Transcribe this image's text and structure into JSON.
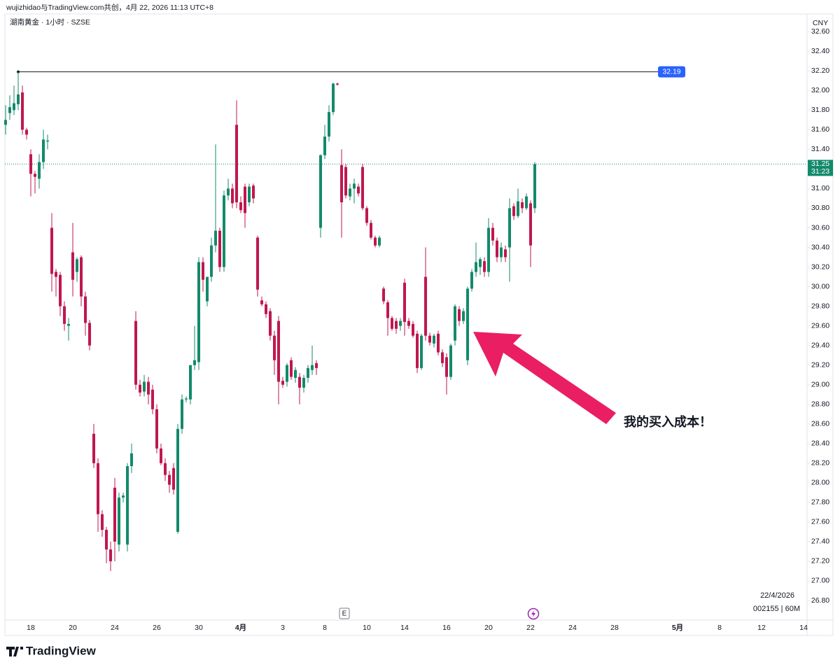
{
  "header": {
    "credit": "wujizhidao与TradingView.com共创，4月 22, 2026 11:13 UTC+8"
  },
  "chart_data": {
    "type": "candlestick",
    "title": "湖南黄金 · 1小时 · SZSE",
    "currency": "CNY",
    "up_color": "#138a6b",
    "down_color": "#c0174e",
    "categories": [
      null,
      null,
      null,
      null,
      null,
      null,
      "18",
      null,
      null,
      null,
      null,
      null,
      null,
      null,
      null,
      null,
      "20",
      null,
      null,
      null,
      null,
      null,
      null,
      null,
      null,
      null,
      "24",
      null,
      null,
      null,
      null,
      null,
      null,
      null,
      null,
      null,
      "26",
      null,
      null,
      null,
      null,
      null,
      null,
      null,
      null,
      null,
      "30",
      null,
      null,
      null,
      null,
      null,
      null,
      null,
      null,
      null,
      "4月",
      null,
      null,
      null,
      null,
      null,
      null,
      null,
      null,
      null,
      "3",
      null,
      null,
      null,
      null,
      null,
      null,
      null,
      null,
      null,
      "8",
      null,
      null,
      null,
      null,
      null,
      null,
      null,
      null,
      null,
      "10",
      null,
      null,
      null,
      null,
      null,
      null,
      null,
      null,
      "14",
      null,
      null,
      null,
      null,
      null,
      null,
      null,
      null,
      null,
      "16",
      null,
      null,
      null,
      null,
      null,
      null,
      null,
      null,
      null,
      "20",
      null,
      null,
      null,
      null,
      null,
      null,
      null,
      null,
      null,
      "22",
      null,
      null,
      null,
      null,
      null,
      null,
      null,
      null,
      null,
      "24",
      null,
      null,
      null,
      null,
      null,
      null,
      null,
      null,
      null,
      "28",
      null,
      null,
      null,
      null,
      null,
      null,
      null,
      null,
      null,
      null,
      null,
      null,
      null,
      null,
      "5月",
      null,
      null,
      null,
      null,
      null,
      null,
      null,
      null,
      null,
      "8",
      null,
      null,
      null,
      null,
      null,
      null,
      null,
      null,
      null,
      "12",
      null,
      null,
      null,
      null,
      null,
      null,
      null,
      null,
      null,
      "14"
    ],
    "open": [
      31.65,
      31.77,
      31.8,
      31.86,
      31.98,
      31.6,
      31.35,
      31.15,
      31.1,
      31.27,
      31.48,
      30.6,
      30.15,
      30.12,
      29.8,
      29.6,
      30.35,
      30.15,
      30.3,
      29.9,
      29.63,
      28.5,
      28.2,
      27.68,
      27.52,
      27.32,
      27.95,
      27.37,
      27.85,
      27.37,
      28.17,
      29.65,
      29.0,
      28.93,
      29.03,
      28.95,
      28.75,
      28.35,
      28.2,
      28.08,
      28.15,
      27.5,
      28.55,
      28.85,
      28.85,
      29.2,
      29.23,
      30.25,
      29.85,
      30.1,
      30.42,
      30.57,
      30.2,
      30.93,
      31.0,
      31.65,
      30.86,
      31.02,
      30.86,
      31.03,
      30.5,
      29.86,
      29.82,
      29.75,
      29.5,
      29.65,
      29.04,
      29.03,
      29.25,
      29.07,
      29.08,
      28.97,
      29.07,
      29.15,
      29.22,
      30.6,
      31.34,
      31.53,
      31.78,
      32.07,
      31.24,
      31.22,
      30.92,
      31.0,
      31.02,
      31.22,
      30.8,
      30.65,
      30.5,
      30.42,
      29.98,
      29.84,
      29.68,
      29.65,
      29.6,
      30.04,
      29.65,
      29.62,
      29.52,
      29.17,
      30.1,
      29.5,
      29.42,
      29.52,
      29.33,
      29.28,
      29.08,
      29.45,
      29.77,
      29.65,
      29.25,
      29.98,
      30.15,
      30.2,
      30.26,
      30.15,
      30.6,
      30.47,
      30.3,
      30.38,
      30.4,
      30.82,
      30.72,
      30.86,
      30.8,
      30.85,
      30.8,
      null,
      null,
      null,
      null,
      null,
      null,
      null,
      null,
      null,
      null,
      null,
      null,
      null,
      null,
      null,
      null,
      null,
      null,
      null,
      null,
      null,
      null,
      null,
      null,
      null,
      null,
      null,
      null,
      null,
      null,
      null,
      null,
      null,
      null,
      null,
      null,
      null,
      null,
      null,
      null,
      null,
      null,
      null,
      null,
      null,
      null,
      null,
      null,
      null,
      null,
      null,
      null,
      null,
      null,
      null,
      null,
      null,
      null,
      null,
      null,
      null,
      null,
      null,
      null
    ],
    "high": [
      31.85,
      31.95,
      32.05,
      32.19,
      32.05,
      31.62,
      31.4,
      31.18,
      31.35,
      31.6,
      31.55,
      30.75,
      30.18,
      30.15,
      29.85,
      29.68,
      30.65,
      30.3,
      30.32,
      29.95,
      29.66,
      28.6,
      28.25,
      27.72,
      27.55,
      27.4,
      28.05,
      27.9,
      27.9,
      28.2,
      28.4,
      29.75,
      29.05,
      29.1,
      29.08,
      29.0,
      28.8,
      28.4,
      28.25,
      28.12,
      28.2,
      28.6,
      28.9,
      28.88,
      29.2,
      29.6,
      30.3,
      30.3,
      30.1,
      30.5,
      31.45,
      30.6,
      30.98,
      31.1,
      31.05,
      31.9,
      30.92,
      31.05,
      31.05,
      31.05,
      30.52,
      29.9,
      29.85,
      29.78,
      29.55,
      29.7,
      29.08,
      29.22,
      29.28,
      29.18,
      29.12,
      29.1,
      29.2,
      29.4,
      29.25,
      31.35,
      31.65,
      31.85,
      32.08,
      32.08,
      31.4,
      31.25,
      31.05,
      31.1,
      31.05,
      31.25,
      30.82,
      30.68,
      30.52,
      30.52,
      30.0,
      29.86,
      29.7,
      29.68,
      29.68,
      30.08,
      29.68,
      29.65,
      29.55,
      29.52,
      30.4,
      29.53,
      29.52,
      29.55,
      29.36,
      29.32,
      29.42,
      29.82,
      29.8,
      29.78,
      30.0,
      30.18,
      30.45,
      30.3,
      30.3,
      30.7,
      30.65,
      30.5,
      30.45,
      30.42,
      30.9,
      30.85,
      31.0,
      30.9,
      30.95,
      30.88,
      31.27,
      null,
      null,
      null,
      null,
      null,
      null,
      null,
      null,
      null,
      null,
      null,
      null,
      null,
      null,
      null,
      null,
      null,
      null,
      null,
      null,
      null,
      null,
      null,
      null,
      null,
      null,
      null,
      null,
      null,
      null,
      null,
      null,
      null,
      null,
      null,
      null,
      null,
      null,
      null,
      null,
      null,
      null,
      null,
      null,
      null,
      null,
      null,
      null,
      null,
      null,
      null,
      null,
      null,
      null,
      null,
      null,
      null,
      null,
      null,
      null,
      null,
      null,
      null,
      null
    ],
    "low": [
      31.55,
      31.7,
      31.75,
      31.8,
      31.55,
      31.5,
      30.92,
      30.95,
      31.0,
      31.2,
      31.4,
      29.95,
      29.9,
      29.7,
      29.55,
      29.45,
      29.9,
      30.05,
      29.8,
      29.5,
      29.35,
      28.15,
      27.5,
      27.45,
      27.18,
      27.1,
      27.2,
      27.3,
      27.8,
      27.3,
      28.1,
      28.95,
      28.88,
      28.88,
      28.8,
      28.7,
      28.3,
      28.18,
      28.02,
      27.9,
      27.88,
      27.48,
      28.5,
      28.82,
      28.8,
      29.15,
      29.15,
      29.95,
      29.8,
      30.05,
      30.35,
      30.15,
      30.15,
      30.88,
      30.8,
      30.8,
      30.75,
      30.6,
      30.82,
      30.85,
      29.9,
      29.8,
      29.68,
      29.45,
      29.1,
      28.8,
      28.97,
      28.98,
      29.05,
      29.02,
      28.8,
      28.92,
      29.02,
      29.1,
      29.1,
      30.5,
      31.3,
      31.48,
      31.75,
      32.05,
      30.5,
      30.9,
      30.88,
      30.85,
      30.92,
      30.78,
      30.62,
      30.48,
      30.4,
      30.4,
      29.82,
      29.5,
      29.55,
      29.52,
      29.55,
      29.5,
      29.57,
      29.48,
      29.12,
      29.15,
      29.45,
      29.4,
      29.38,
      29.3,
      29.18,
      28.9,
      29.05,
      29.4,
      29.6,
      29.62,
      29.2,
      29.95,
      30.1,
      30.12,
      30.1,
      30.1,
      30.42,
      30.25,
      30.25,
      30.25,
      30.05,
      30.68,
      30.7,
      30.75,
      30.78,
      30.2,
      30.75,
      null,
      null,
      null,
      null,
      null,
      null,
      null,
      null,
      null,
      null,
      null,
      null,
      null,
      null,
      null,
      null,
      null,
      null,
      null,
      null,
      null,
      null,
      null,
      null,
      null,
      null,
      null,
      null,
      null,
      null,
      null,
      null,
      null,
      null,
      null,
      null,
      null,
      null,
      null,
      null,
      null,
      null,
      null,
      null,
      null,
      null,
      null,
      null,
      null,
      null,
      null,
      null,
      null,
      null,
      null,
      null,
      null,
      null,
      null,
      null,
      null,
      null,
      null,
      null
    ],
    "close": [
      31.7,
      31.83,
      31.87,
      31.96,
      31.6,
      31.55,
      31.15,
      31.12,
      31.27,
      31.5,
      31.49,
      30.13,
      30.1,
      29.8,
      29.62,
      29.62,
      30.07,
      30.28,
      29.9,
      29.63,
      29.4,
      28.2,
      27.68,
      27.52,
      27.32,
      27.2,
      27.4,
      27.85,
      27.87,
      28.17,
      28.3,
      29.0,
      28.92,
      29.03,
      28.9,
      28.75,
      28.35,
      28.2,
      28.08,
      27.98,
      27.93,
      28.55,
      28.85,
      28.86,
      29.2,
      29.25,
      30.25,
      30.07,
      30.1,
      30.42,
      30.57,
      30.2,
      30.93,
      31.0,
      30.85,
      30.86,
      30.78,
      30.75,
      31.02,
      30.9,
      29.97,
      29.82,
      29.72,
      29.5,
      29.25,
      29.03,
      29.0,
      29.2,
      29.08,
      29.15,
      28.97,
      29.07,
      29.17,
      29.2,
      29.17,
      31.34,
      31.53,
      31.78,
      32.07,
      32.06,
      30.86,
      30.93,
      31.0,
      31.05,
      30.95,
      30.8,
      30.65,
      30.5,
      30.42,
      30.5,
      29.85,
      29.68,
      29.57,
      29.57,
      29.65,
      29.64,
      29.6,
      29.5,
      29.17,
      29.5,
      29.5,
      29.43,
      29.5,
      29.33,
      29.22,
      29.08,
      29.4,
      29.8,
      29.65,
      29.75,
      29.98,
      30.15,
      30.25,
      30.28,
      30.15,
      30.6,
      30.47,
      30.3,
      30.4,
      30.3,
      30.8,
      30.72,
      30.87,
      30.8,
      30.92,
      30.42,
      31.25,
      null,
      null,
      null,
      null,
      null,
      null,
      null,
      null,
      null,
      null,
      null,
      null,
      null,
      null,
      null,
      null,
      null,
      null,
      null,
      null,
      null,
      null,
      null,
      null,
      null,
      null,
      null,
      null,
      null,
      null,
      null,
      null,
      null,
      null,
      null,
      null,
      null,
      null,
      null,
      null,
      null,
      null,
      null,
      null,
      null,
      null,
      null,
      null,
      null,
      null,
      null,
      null,
      null,
      null,
      null,
      null,
      null,
      null,
      null,
      null,
      null,
      null,
      null,
      null
    ],
    "ylim": [
      26.6,
      32.78
    ],
    "yticks": [
      {
        "value": 26.8,
        "label": "26.80"
      },
      {
        "value": 27,
        "label": "27.00"
      },
      {
        "value": 27.2,
        "label": "27.20"
      },
      {
        "value": 27.4,
        "label": "27.40"
      },
      {
        "value": 27.6,
        "label": "27.60"
      },
      {
        "value": 27.8,
        "label": "27.80"
      },
      {
        "value": 28,
        "label": "28.00"
      },
      {
        "value": 28.2,
        "label": "28.20"
      },
      {
        "value": 28.4,
        "label": "28.40"
      },
      {
        "value": 28.6,
        "label": "28.60"
      },
      {
        "value": 28.8,
        "label": "28.80"
      },
      {
        "value": 29,
        "label": "29.00"
      },
      {
        "value": 29.2,
        "label": "29.20"
      },
      {
        "value": 29.4,
        "label": "29.40"
      },
      {
        "value": 29.6,
        "label": "29.60"
      },
      {
        "value": 29.8,
        "label": "29.80"
      },
      {
        "value": 30,
        "label": "30.00"
      },
      {
        "value": 30.2,
        "label": "30.20"
      },
      {
        "value": 30.4,
        "label": "30.40"
      },
      {
        "value": 30.6,
        "label": "30.60"
      },
      {
        "value": 30.8,
        "label": "30.80"
      },
      {
        "value": 31,
        "label": "31.00"
      },
      {
        "value": 31.2,
        "label": "31.20"
      },
      {
        "value": 31.4,
        "label": "31.40"
      },
      {
        "value": 31.6,
        "label": "31.60"
      },
      {
        "value": 31.8,
        "label": "31.80"
      },
      {
        "value": 32,
        "label": "32.00"
      },
      {
        "value": 32.2,
        "label": "32.20"
      },
      {
        "value": 32.4,
        "label": "32.40"
      },
      {
        "value": 32.6,
        "label": "32.60"
      }
    ],
    "grid": false,
    "hline": 32.19,
    "hline_color": "#2962ff",
    "last_price": 31.25,
    "countdown": "31:23",
    "annotation": "我的买入成本！",
    "events_marker": "E",
    "date_label": "22/4/2026",
    "symbol_info": "002155 | 60M"
  },
  "footer": {
    "logo": "TradingView"
  }
}
